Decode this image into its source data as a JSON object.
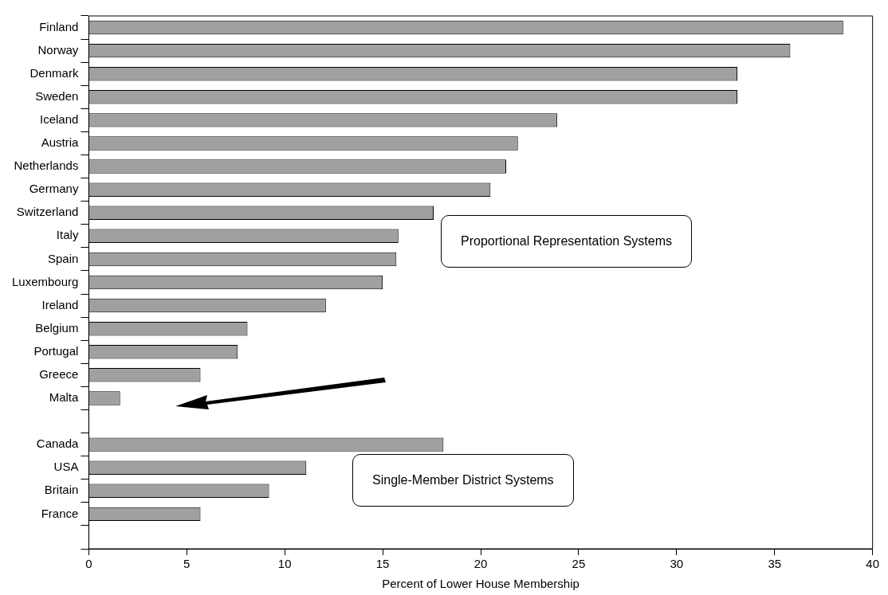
{
  "chart_data": {
    "type": "bar",
    "orientation": "horizontal",
    "xlabel": "Percent of Lower House Membership",
    "categories": [
      "Finland",
      "Norway",
      "Denmark",
      "Sweden",
      "Iceland",
      "Austria",
      "Netherlands",
      "Germany",
      "Switzerland",
      "Italy",
      "Spain",
      "Luxembourg",
      "Ireland",
      "Belgium",
      "Portugal",
      "Greece",
      "Malta",
      null,
      "Canada",
      "USA",
      "Britain",
      "France",
      null
    ],
    "values": [
      38.5,
      35.8,
      33.1,
      33.1,
      23.9,
      21.9,
      21.3,
      20.5,
      17.6,
      15.8,
      15.7,
      15.0,
      12.1,
      8.1,
      7.6,
      5.7,
      1.6,
      null,
      18.1,
      11.1,
      9.2,
      5.7,
      null
    ],
    "color": "#a0a0a0",
    "xlim": [
      0,
      40
    ],
    "xticks": [
      0,
      5,
      10,
      15,
      20,
      25,
      30,
      35,
      40
    ],
    "grid": false,
    "legend": false,
    "annotations": [
      "Proportional Representation Systems",
      "Single-Member District Systems"
    ]
  }
}
